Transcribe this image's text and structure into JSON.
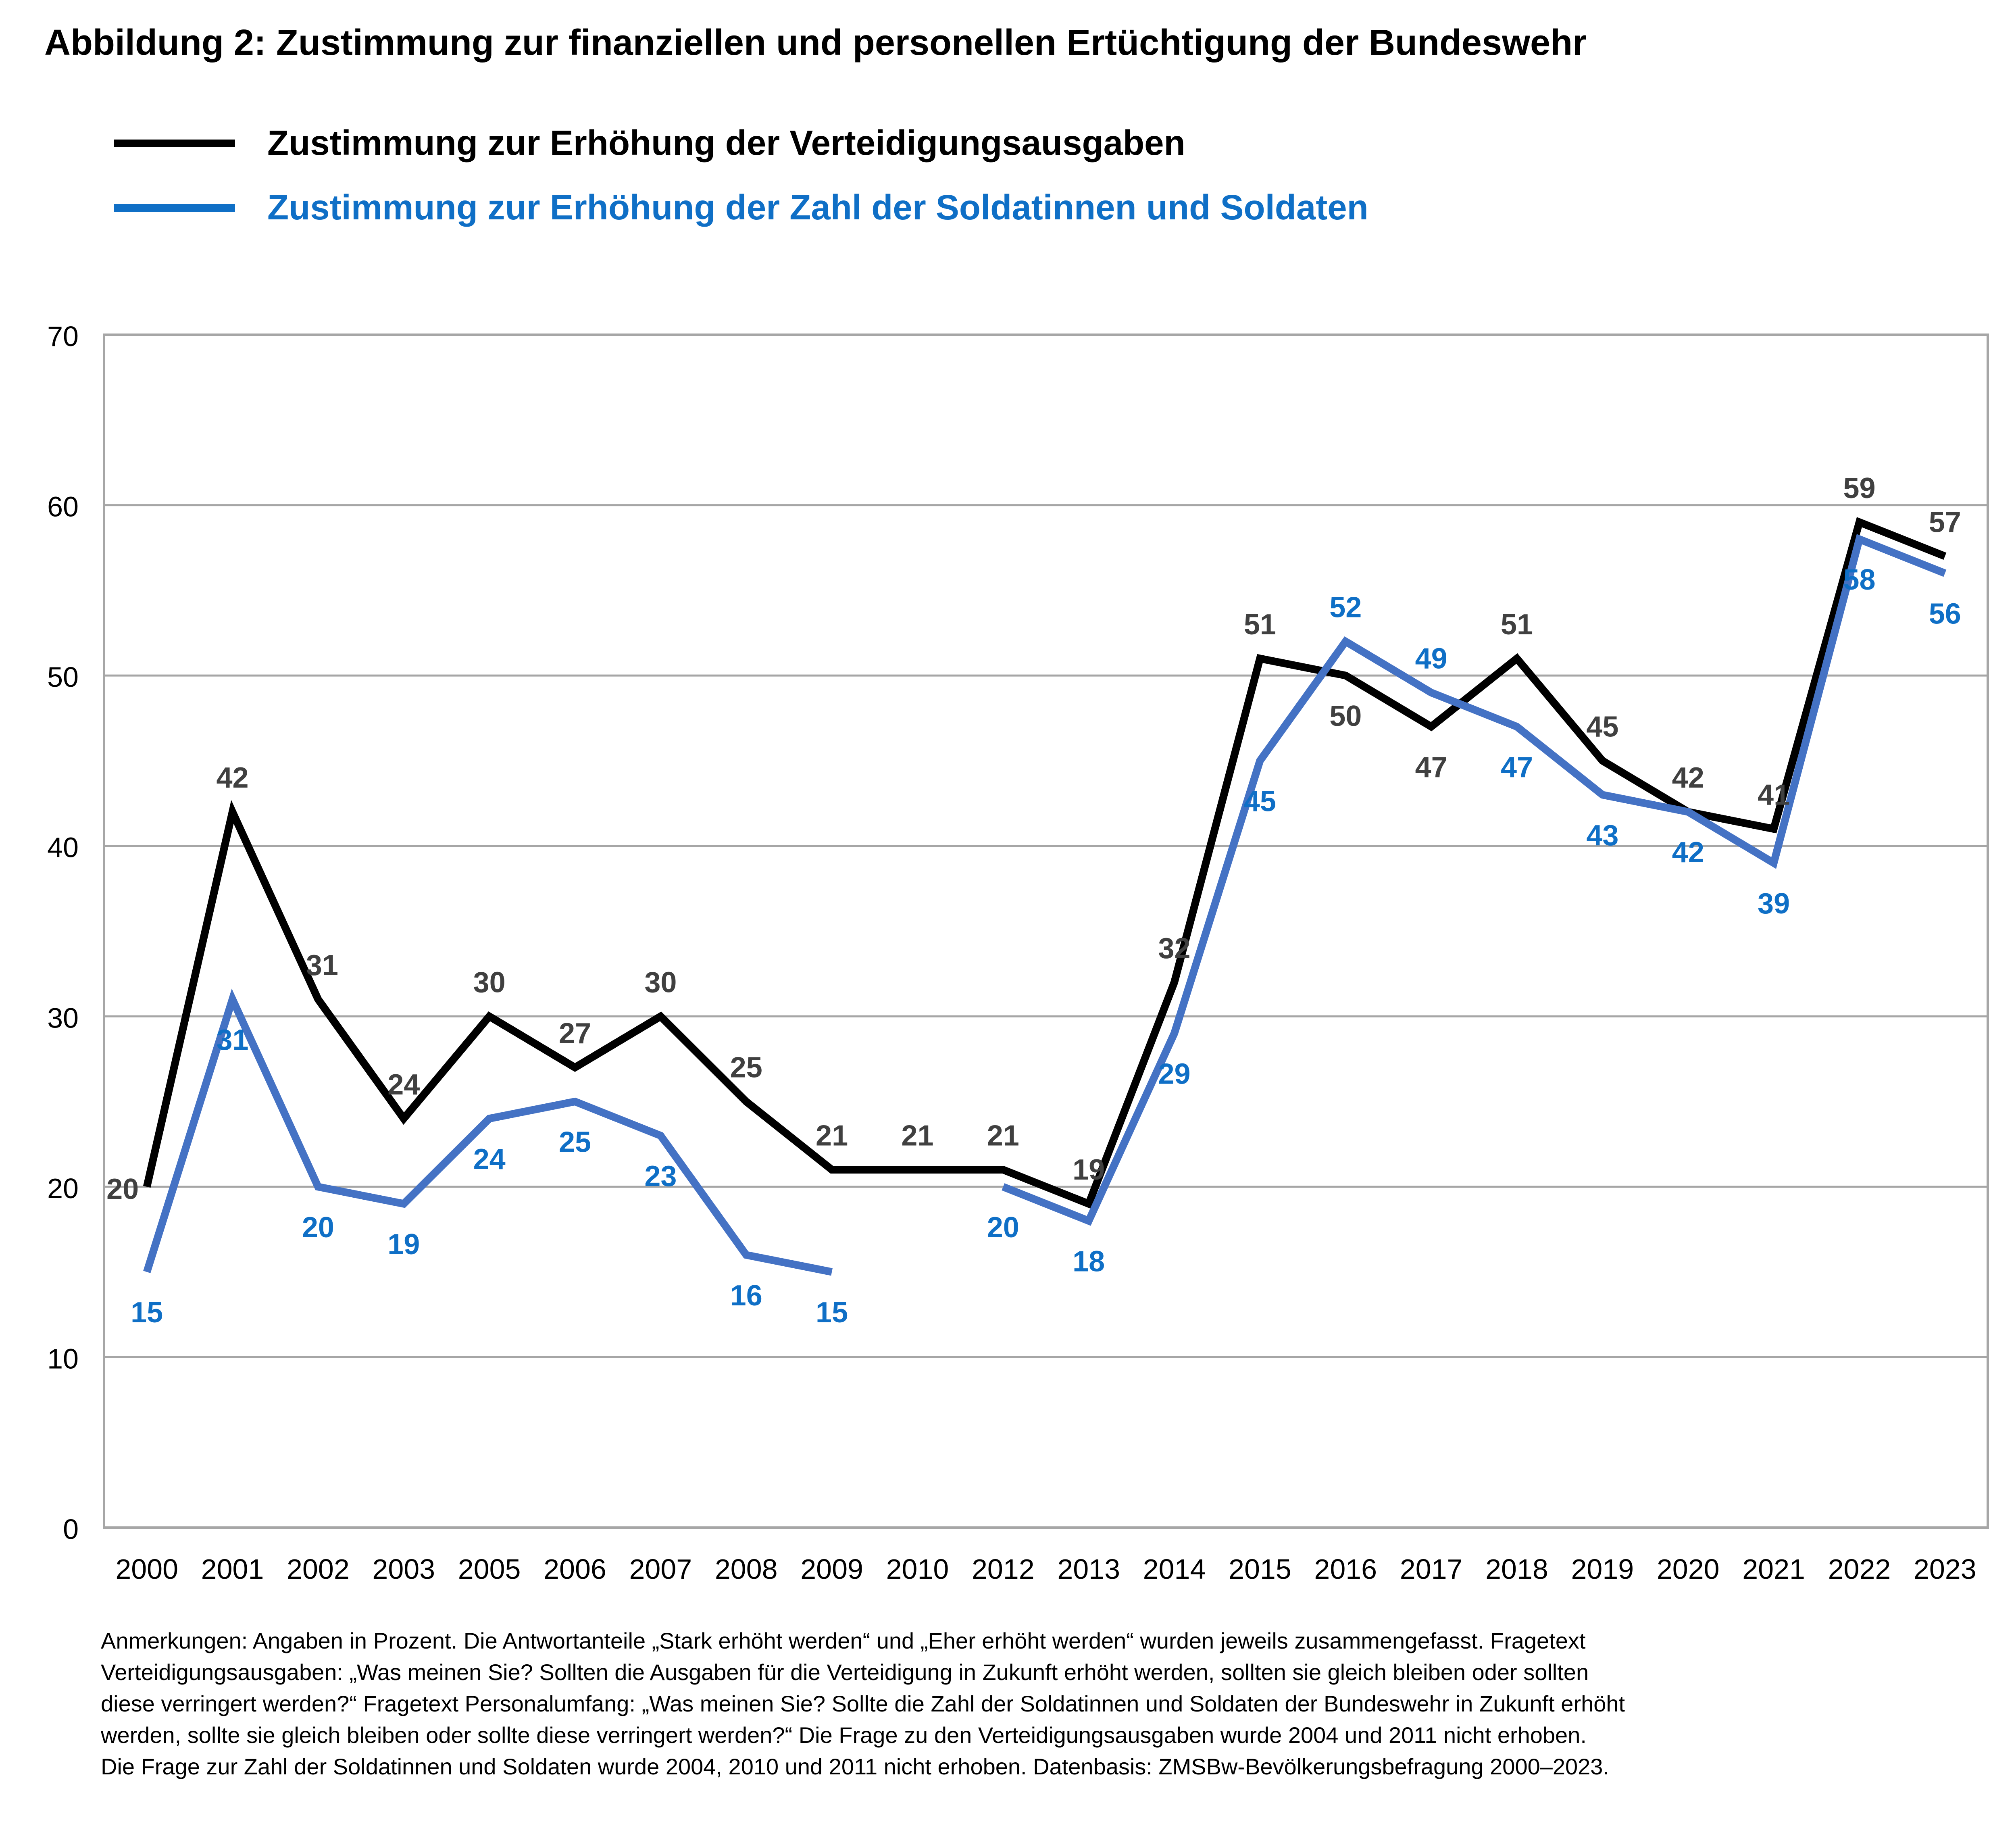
{
  "chart_data": {
    "type": "line",
    "title": "Abbildung 2: Zustimmung zur finanziellen und personellen Ertüchtigung der Bundeswehr",
    "categories": [
      "2000",
      "2001",
      "2002",
      "2003",
      "2005",
      "2006",
      "2007",
      "2008",
      "2009",
      "2010",
      "2012",
      "2013",
      "2014",
      "2015",
      "2016",
      "2017",
      "2018",
      "2019",
      "2020",
      "2021",
      "2022",
      "2023"
    ],
    "series": [
      {
        "name": "Zustimmung zur Erhöhung der Verteidigungsausgaben",
        "color": "#000000",
        "label_color": "#404040",
        "values": [
          20,
          42,
          31,
          24,
          30,
          27,
          30,
          25,
          21,
          21,
          21,
          19,
          32,
          51,
          50,
          47,
          51,
          45,
          42,
          41,
          59,
          57
        ]
      },
      {
        "name": "Zustimmung zur Erhöhung der Zahl der Soldatinnen und Soldaten",
        "color": "#4472C4",
        "label_color": "#0F6FC6",
        "values": [
          15,
          31,
          20,
          19,
          24,
          25,
          23,
          16,
          15,
          null,
          20,
          18,
          29,
          45,
          52,
          49,
          47,
          43,
          42,
          39,
          58,
          56
        ]
      }
    ],
    "ylim": [
      0,
      70
    ],
    "yticks": [
      0,
      10,
      20,
      30,
      40,
      50,
      60,
      70
    ],
    "xlabel": "",
    "ylabel": "",
    "grid": true,
    "legend": "top-left"
  },
  "notes": [
    "Anmerkungen: Angaben in Prozent. Die Antwortanteile „Stark erhöht werden“ und „Eher erhöht werden“ wurden jeweils zusammengefasst. Fragetext",
    "Verteidigungsausgaben: „Was meinen Sie? Sollten die Ausgaben für die Verteidigung in Zukunft erhöht werden, sollten sie gleich bleiben oder sollten",
    "diese verringert werden?“ Fragetext Personalumfang: „Was meinen Sie? Sollte die Zahl der Soldatinnen und Soldaten der Bundeswehr in Zukunft erhöht",
    "werden, sollte sie gleich bleiben oder sollte diese verringert werden?“ Die Frage zu den Verteidigungsausgaben wurde 2004 und 2011 nicht erhoben.",
    "Die Frage zur Zahl der Soldatinnen und Soldaten wurde 2004, 2010 und 2011 nicht erhoben. Datenbasis: ZMSBw-Bevölkerungsbefragung 2000–2023."
  ]
}
